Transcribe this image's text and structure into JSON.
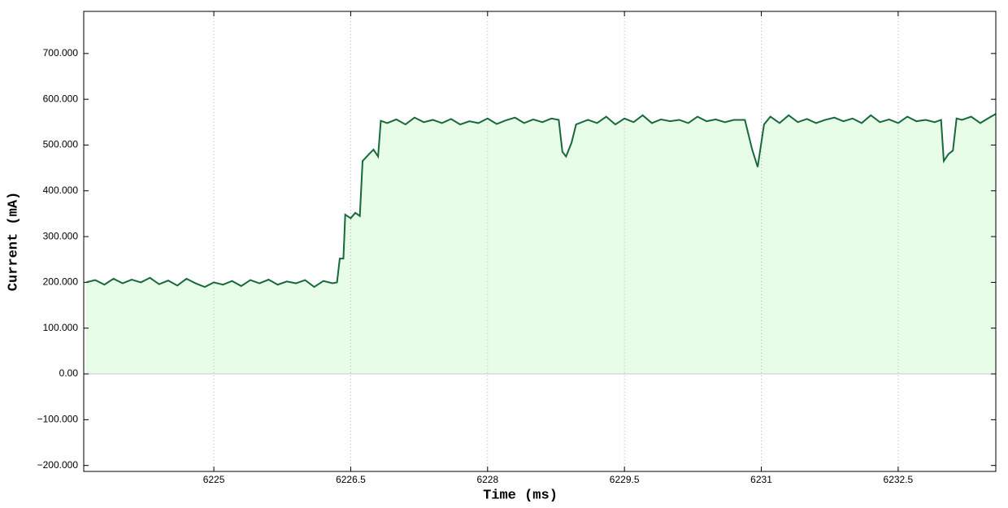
{
  "chart_data": {
    "type": "area",
    "xlabel": "Time (ms)",
    "ylabel": "Current (mA)",
    "xlim": [
      6223.574,
      6233.57
    ],
    "ylim": [
      -213,
      792
    ],
    "xticks": [
      6225,
      6226.5,
      6228,
      6229.5,
      6231,
      6232.5
    ],
    "yticks": [
      {
        "value": -200,
        "label": "−200.000"
      },
      {
        "value": -100,
        "label": "−100.000"
      },
      {
        "value": 0,
        "label": "0.00"
      },
      {
        "value": 100,
        "label": "100.000"
      },
      {
        "value": 200,
        "label": "200.000"
      },
      {
        "value": 300,
        "label": "300.000"
      },
      {
        "value": 400,
        "label": "400.000"
      },
      {
        "value": 500,
        "label": "500.000"
      },
      {
        "value": 600,
        "label": "600.000"
      },
      {
        "value": 700,
        "label": "700.000"
      }
    ],
    "xgrid": true,
    "color": "#17683a",
    "fill": "#e8fde8",
    "x": [
      6223.6,
      6223.7,
      6223.8,
      6223.9,
      6224.0,
      6224.1,
      6224.2,
      6224.3,
      6224.4,
      6224.5,
      6224.6,
      6224.7,
      6224.8,
      6224.9,
      6225.0,
      6225.1,
      6225.2,
      6225.3,
      6225.4,
      6225.5,
      6225.6,
      6225.7,
      6225.8,
      6225.9,
      6226.0,
      6226.1,
      6226.2,
      6226.3,
      6226.35,
      6226.38,
      6226.42,
      6226.44,
      6226.5,
      6226.55,
      6226.6,
      6226.63,
      6226.7,
      6226.75,
      6226.8,
      6226.83,
      6226.9,
      6227.0,
      6227.1,
      6227.2,
      6227.3,
      6227.4,
      6227.5,
      6227.6,
      6227.7,
      6227.8,
      6227.9,
      6228.0,
      6228.1,
      6228.2,
      6228.3,
      6228.4,
      6228.5,
      6228.6,
      6228.7,
      6228.78,
      6228.82,
      6228.86,
      6228.92,
      6228.97,
      6229.1,
      6229.2,
      6229.3,
      6229.4,
      6229.5,
      6229.6,
      6229.7,
      6229.8,
      6229.9,
      6230.0,
      6230.1,
      6230.2,
      6230.3,
      6230.4,
      6230.5,
      6230.6,
      6230.7,
      6230.82,
      6230.9,
      6230.96,
      6231.03,
      6231.1,
      6231.2,
      6231.3,
      6231.4,
      6231.5,
      6231.6,
      6231.7,
      6231.8,
      6231.9,
      6232.0,
      6232.1,
      6232.2,
      6232.3,
      6232.4,
      6232.5,
      6232.6,
      6232.7,
      6232.8,
      6232.9,
      6232.97,
      6233.0,
      6233.05,
      6233.1,
      6233.14,
      6233.2,
      6233.3,
      6233.4,
      6233.5,
      6233.57
    ],
    "values": [
      200,
      205,
      195,
      208,
      198,
      206,
      200,
      210,
      196,
      204,
      193,
      208,
      198,
      190,
      200,
      195,
      203,
      192,
      205,
      198,
      206,
      195,
      202,
      198,
      205,
      190,
      203,
      198,
      200,
      252,
      252,
      348,
      340,
      352,
      345,
      465,
      480,
      490,
      475,
      553,
      548,
      556,
      545,
      560,
      550,
      555,
      548,
      557,
      545,
      552,
      548,
      558,
      546,
      554,
      560,
      548,
      556,
      550,
      558,
      555,
      485,
      475,
      505,
      545,
      555,
      548,
      562,
      545,
      558,
      550,
      565,
      548,
      556,
      552,
      555,
      548,
      562,
      552,
      556,
      550,
      555,
      555,
      490,
      452,
      545,
      562,
      548,
      565,
      550,
      557,
      548,
      555,
      560,
      552,
      558,
      548,
      565,
      550,
      556,
      548,
      562,
      552,
      555,
      550,
      555,
      465,
      480,
      488,
      558,
      555,
      562,
      548,
      560,
      568
    ]
  }
}
